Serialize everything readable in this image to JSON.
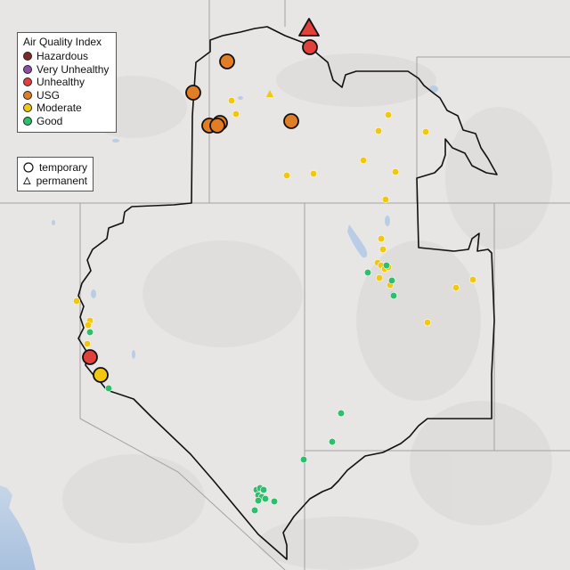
{
  "legend": {
    "aqi_title": "Air Quality Index",
    "aqi_items": [
      {
        "label": "Hazardous",
        "color": "#7e2a26"
      },
      {
        "label": "Very Unhealthy",
        "color": "#8e4fa7"
      },
      {
        "label": "Unhealthy",
        "color": "#e2403a"
      },
      {
        "label": "USG",
        "color": "#e07d25"
      },
      {
        "label": "Moderate",
        "color": "#f2c70f"
      },
      {
        "label": "Good",
        "color": "#2dbf6a"
      }
    ],
    "type_items": [
      {
        "label": "temporary",
        "shape": "circle-icon"
      },
      {
        "label": "permanent",
        "shape": "triangle-icon"
      }
    ]
  },
  "colors": {
    "land": "#e8e6e4",
    "water": "#b9cde6",
    "border": "#111111",
    "state_line": "#9a9a9a"
  }
}
